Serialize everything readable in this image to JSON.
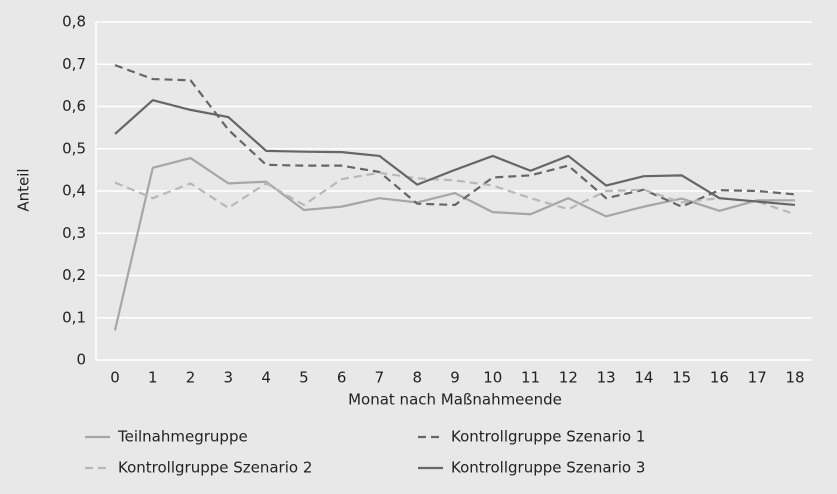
{
  "chart_data": {
    "type": "line",
    "y_label": "Anteil",
    "x_label": "Monat nach Maßnahmeende",
    "categories": [
      "0",
      "1",
      "2",
      "3",
      "4",
      "5",
      "6",
      "7",
      "8",
      "9",
      "10",
      "11",
      "12",
      "13",
      "14",
      "15",
      "16",
      "17",
      "18"
    ],
    "ylim": [
      0,
      0.8
    ],
    "yticks": [
      0,
      {
        "value": 0.1,
        "label": "0,1"
      },
      {
        "value": 0.2,
        "label": "0,2"
      },
      {
        "value": 0.3,
        "label": "0,3"
      },
      {
        "value": 0.4,
        "label": "0,4"
      },
      {
        "value": 0.5,
        "label": "0,5"
      },
      {
        "value": 0.6,
        "label": "0,6"
      },
      {
        "value": 0.7,
        "label": "0,7"
      },
      {
        "value": 0.8,
        "label": "0,8"
      }
    ],
    "grid": true,
    "legend": "bottom",
    "series": [
      {
        "name": "Teilnahmegruppe",
        "color": "#a6a6a6",
        "style": "solid",
        "values": [
          0.07,
          0.455,
          0.478,
          0.418,
          0.422,
          0.355,
          0.363,
          0.383,
          0.373,
          0.395,
          0.35,
          0.345,
          0.383,
          0.34,
          0.363,
          0.382,
          0.353,
          0.378,
          0.378
        ]
      },
      {
        "name": "Kontrollgruppe Szenario 1",
        "color": "#666666",
        "style": "dashed",
        "values": [
          0.698,
          0.665,
          0.662,
          0.545,
          0.462,
          0.46,
          0.46,
          0.445,
          0.37,
          0.367,
          0.432,
          0.437,
          0.46,
          0.383,
          0.403,
          0.363,
          0.402,
          0.4,
          0.392
        ]
      },
      {
        "name": "Kontrollgruppe Szenario 2",
        "color": "#b8b8b8",
        "style": "dashed",
        "values": [
          0.42,
          0.383,
          0.418,
          0.36,
          0.418,
          0.367,
          0.428,
          0.443,
          0.43,
          0.425,
          0.413,
          0.383,
          0.357,
          0.4,
          0.403,
          0.373,
          0.383,
          0.375,
          0.345
        ]
      },
      {
        "name": "Kontrollgruppe Szenario 3",
        "color": "#666666",
        "style": "solid",
        "values": [
          0.535,
          0.615,
          0.592,
          0.575,
          0.495,
          0.493,
          0.492,
          0.483,
          0.415,
          0.45,
          0.483,
          0.448,
          0.483,
          0.413,
          0.435,
          0.437,
          0.383,
          0.375,
          0.367
        ]
      }
    ]
  }
}
